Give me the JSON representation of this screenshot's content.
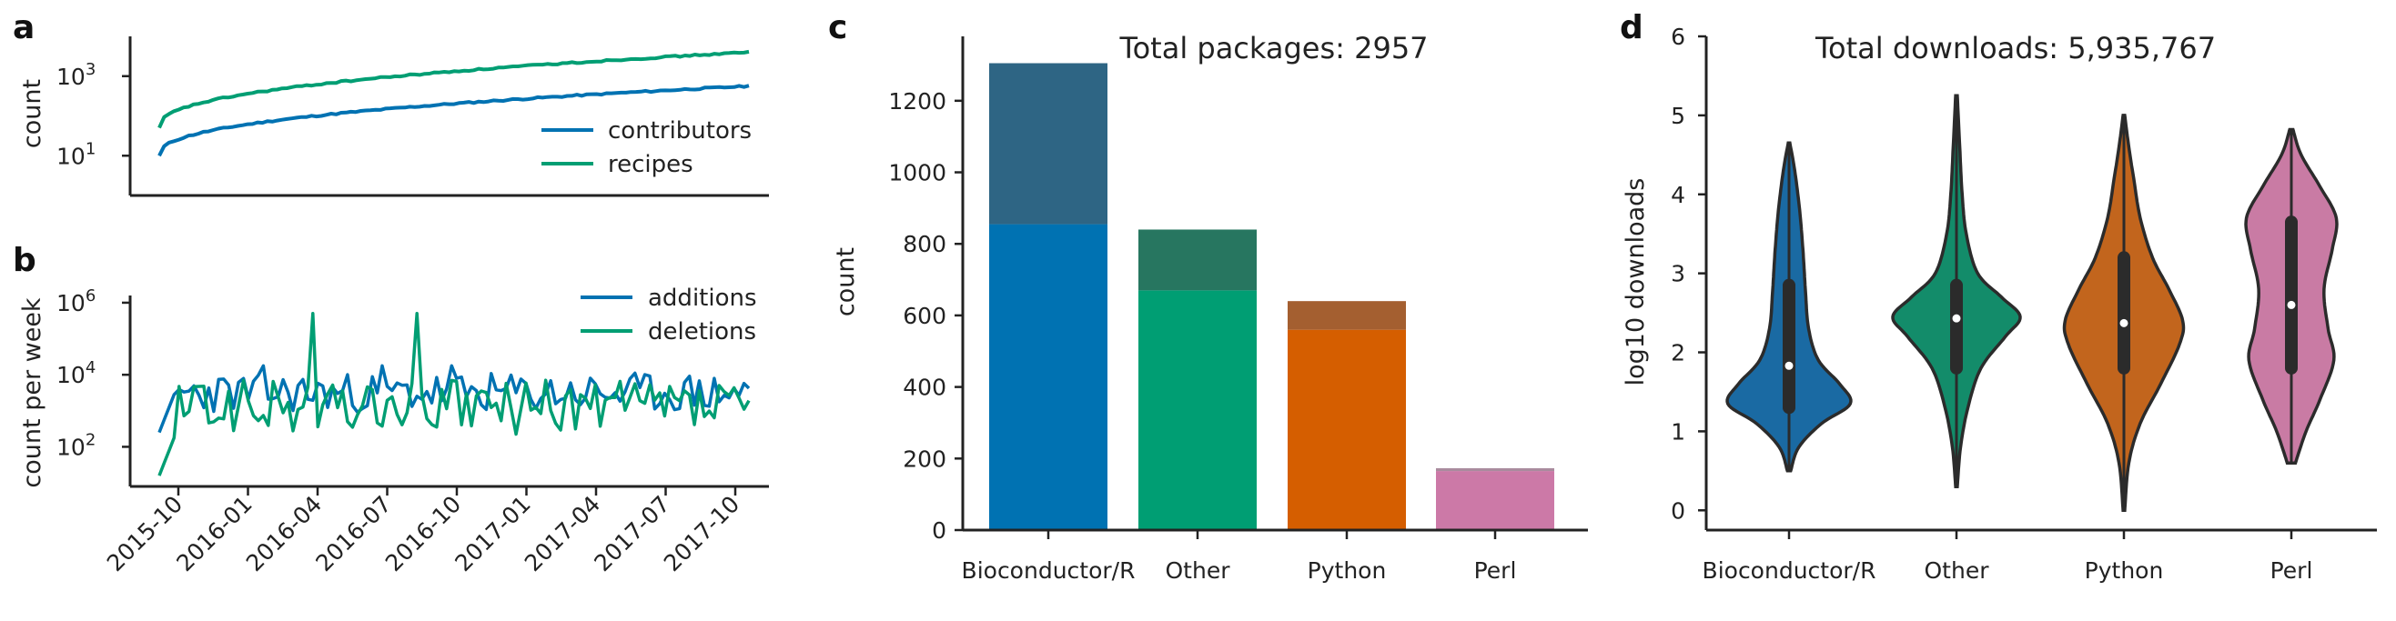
{
  "palette": {
    "blue": "#0072b2",
    "green": "#009e73",
    "orange": "#d55e00",
    "pink": "#cc79a7",
    "blue_dark": "#2e6584",
    "green_dark": "#277660",
    "orange_dark": "#a45f30",
    "pink_dark": "#a98b9e",
    "violin_blue": "#1a6aa3",
    "violin_green": "#138c6a",
    "violin_orange": "#c2651d",
    "violin_pink": "#c97ba4",
    "axis": "#222222"
  },
  "chart_data": [
    {
      "panel": "a",
      "type": "line",
      "ylabel": "count",
      "yscale": "log",
      "ylim_exp": [
        0,
        4
      ],
      "yticks": [
        {
          "exp": 1,
          "base": "10",
          "sup": "1"
        },
        {
          "exp": 3,
          "base": "10",
          "sup": "3"
        }
      ],
      "x_shared_with": "b",
      "legend": "lower-right",
      "series": [
        {
          "name": "contributors",
          "color_key": "blue",
          "steps": 120,
          "start": 1.0,
          "end": 2.75
        },
        {
          "name": "recipes",
          "color_key": "green",
          "steps": 120,
          "start": 1.7,
          "end": 3.6
        }
      ]
    },
    {
      "panel": "b",
      "type": "line",
      "ylabel": "count per week",
      "yscale": "log",
      "ylim_exp": [
        0.9,
        6.2
      ],
      "yticks": [
        {
          "exp": 2,
          "base": "10",
          "sup": "2"
        },
        {
          "exp": 4,
          "base": "10",
          "sup": "4"
        },
        {
          "exp": 6,
          "base": "10",
          "sup": "6"
        }
      ],
      "legend": "upper-right",
      "x_dates": [
        "2015-10",
        "2016-01",
        "2016-04",
        "2016-07",
        "2016-10",
        "2017-01",
        "2017-04",
        "2017-07",
        "2017-10"
      ],
      "series": [
        {
          "name": "additions",
          "color_key": "blue",
          "weeks": 120,
          "median_exp": 3.5
        },
        {
          "name": "deletions",
          "color_key": "green",
          "weeks": 120,
          "median_exp": 3.1
        }
      ]
    },
    {
      "panel": "c",
      "type": "bar",
      "ylabel": "count",
      "ylim": [
        0,
        1380
      ],
      "yticks": [
        0,
        200,
        400,
        600,
        800,
        1000,
        1200
      ],
      "annotation": "Total packages: 2957",
      "categories": [
        "Bioconductor/R",
        "Other",
        "Python",
        "Perl"
      ],
      "series": [
        {
          "name": "base",
          "values": [
            855,
            670,
            560,
            165
          ],
          "color_keys": [
            "blue",
            "green",
            "orange",
            "pink"
          ]
        },
        {
          "name": "top",
          "values": [
            450,
            170,
            80,
            8
          ],
          "color_keys": [
            "blue_dark",
            "green_dark",
            "orange_dark",
            "pink_dark"
          ]
        }
      ]
    },
    {
      "panel": "d",
      "type": "violin",
      "ylabel": "log10 downloads",
      "ylim": [
        -0.25,
        6
      ],
      "yticks": [
        0,
        1,
        2,
        3,
        4,
        5,
        6
      ],
      "annotation": "Total downloads: 5,935,767",
      "categories": [
        "Bioconductor/R",
        "Other",
        "Python",
        "Perl"
      ],
      "violins": [
        {
          "color_key": "violin_blue",
          "min": 0.5,
          "max": 4.65,
          "q1": 1.3,
          "median": 1.83,
          "q3": 2.85,
          "profile": [
            [
              0.5,
              0.02
            ],
            [
              0.8,
              0.12
            ],
            [
              1.1,
              0.4
            ],
            [
              1.35,
              0.75
            ],
            [
              1.6,
              0.62
            ],
            [
              1.9,
              0.36
            ],
            [
              2.3,
              0.24
            ],
            [
              2.8,
              0.2
            ],
            [
              3.3,
              0.17
            ],
            [
              3.8,
              0.13
            ],
            [
              4.3,
              0.07
            ],
            [
              4.65,
              0.01
            ]
          ]
        },
        {
          "color_key": "violin_green",
          "min": 0.3,
          "max": 5.25,
          "q1": 1.8,
          "median": 2.43,
          "q3": 2.85,
          "profile": [
            [
              0.3,
              0.01
            ],
            [
              0.8,
              0.05
            ],
            [
              1.3,
              0.14
            ],
            [
              1.8,
              0.3
            ],
            [
              2.2,
              0.6
            ],
            [
              2.45,
              0.78
            ],
            [
              2.7,
              0.55
            ],
            [
              3.0,
              0.26
            ],
            [
              3.5,
              0.12
            ],
            [
              4.0,
              0.07
            ],
            [
              4.6,
              0.04
            ],
            [
              5.25,
              0.01
            ]
          ]
        },
        {
          "color_key": "violin_orange",
          "min": 0.0,
          "max": 5.0,
          "q1": 1.8,
          "median": 2.37,
          "q3": 3.2,
          "profile": [
            [
              0.0,
              0.01
            ],
            [
              0.6,
              0.06
            ],
            [
              1.1,
              0.2
            ],
            [
              1.6,
              0.45
            ],
            [
              2.1,
              0.68
            ],
            [
              2.4,
              0.72
            ],
            [
              2.8,
              0.55
            ],
            [
              3.2,
              0.35
            ],
            [
              3.7,
              0.2
            ],
            [
              4.2,
              0.12
            ],
            [
              4.6,
              0.06
            ],
            [
              5.0,
              0.01
            ]
          ]
        },
        {
          "color_key": "violin_pink",
          "min": 0.6,
          "max": 4.82,
          "q1": 1.8,
          "median": 2.6,
          "q3": 3.65,
          "profile": [
            [
              0.6,
              0.05
            ],
            [
              1.0,
              0.18
            ],
            [
              1.4,
              0.35
            ],
            [
              1.9,
              0.52
            ],
            [
              2.3,
              0.45
            ],
            [
              2.8,
              0.4
            ],
            [
              3.3,
              0.5
            ],
            [
              3.7,
              0.55
            ],
            [
              4.1,
              0.35
            ],
            [
              4.5,
              0.12
            ],
            [
              4.82,
              0.02
            ]
          ]
        }
      ]
    }
  ]
}
